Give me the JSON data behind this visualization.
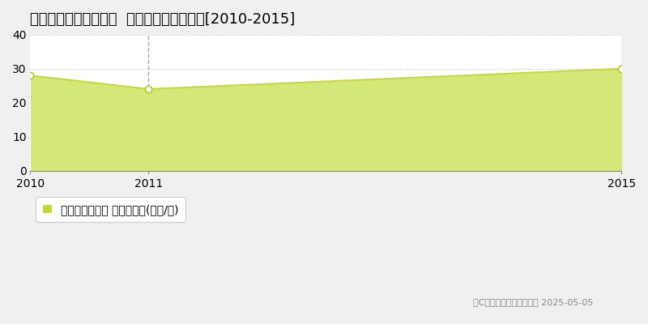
{
  "title": "東広島市八本松町飯田  マンション価格推移[2010-2015]",
  "years": [
    2010,
    2011,
    2015
  ],
  "values": [
    28,
    24,
    30
  ],
  "line_color": "#c8d832",
  "fill_color": "#d4e87a",
  "fill_alpha": 1.0,
  "marker_color": "#ffffff",
  "marker_edge_color": "#b8c828",
  "vline_year": 2011,
  "vline_color": "#aaaaaa",
  "xlim": [
    2010,
    2015
  ],
  "ylim": [
    0,
    40
  ],
  "yticks": [
    0,
    10,
    20,
    30,
    40
  ],
  "xticks": [
    2010,
    2011,
    2015
  ],
  "grid_color": "#bbbbbb",
  "background_color": "#f0f0f0",
  "plot_bg_color": "#ffffff",
  "legend_label": "マンション価格 平均坪単価(万円/坪)",
  "copyright_text": "（C）土地価格ドットコム 2025-05-05",
  "title_fontsize": 13,
  "tick_fontsize": 10,
  "legend_fontsize": 10
}
